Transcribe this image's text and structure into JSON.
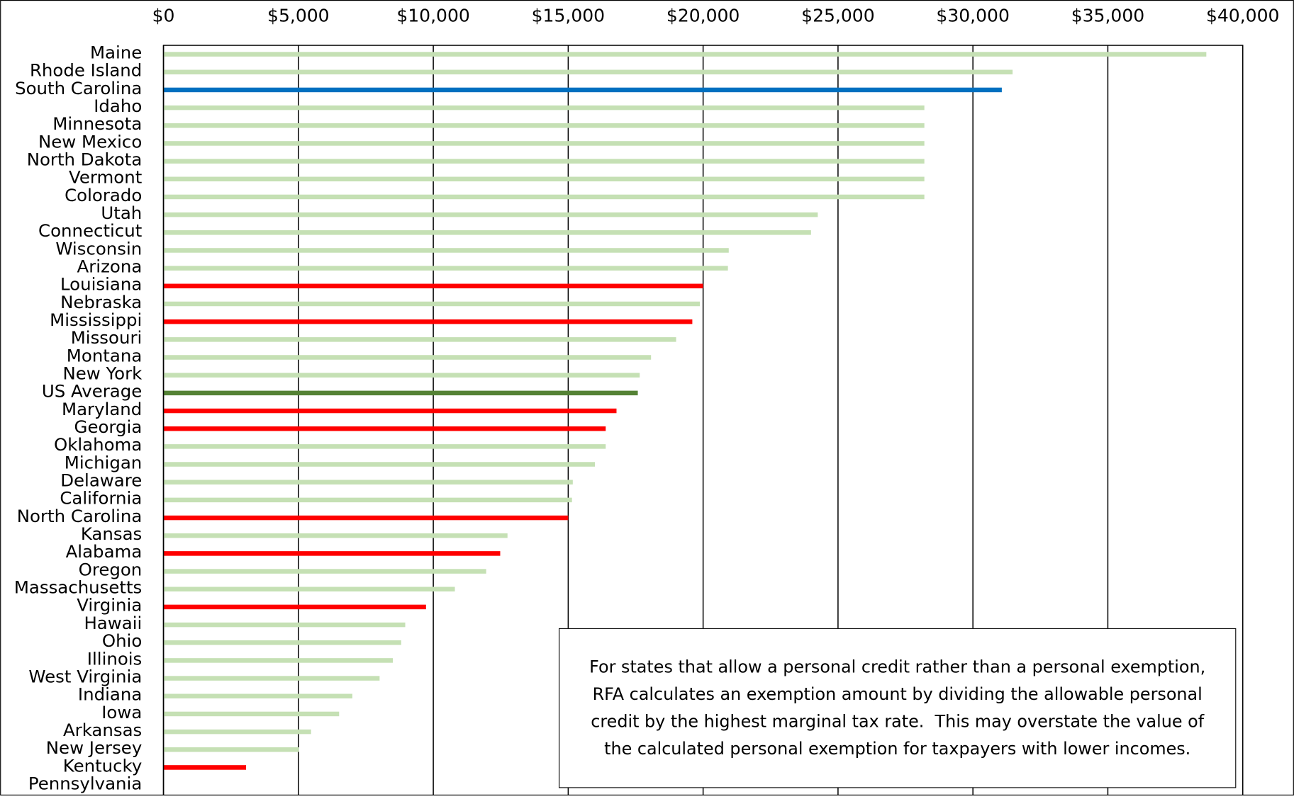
{
  "chart_data": {
    "type": "hbar",
    "categories": [
      "Maine",
      "Rhode Island",
      "South Carolina",
      "Idaho",
      "Minnesota",
      "New Mexico",
      "North Dakota",
      "Vermont",
      "Colorado",
      "Utah",
      "Connecticut",
      "Wisconsin",
      "Arizona",
      "Louisiana",
      "Nebraska",
      "Mississippi",
      "Missouri",
      "Montana",
      "New York",
      "US Average",
      "Maryland",
      "Georgia",
      "Oklahoma",
      "Michigan",
      "Delaware",
      "California",
      "North Carolina",
      "Kansas",
      "Alabama",
      "Oregon",
      "Massachusetts",
      "Virginia",
      "Hawaii",
      "Ohio",
      "Illinois",
      "West Virginia",
      "Indiana",
      "Iowa",
      "Arkansas",
      "New Jersey",
      "Kentucky",
      "Pennsylvania"
    ],
    "values": [
      38650,
      31470,
      31070,
      28200,
      28200,
      28200,
      28200,
      28200,
      28200,
      24250,
      24000,
      20950,
      20920,
      20000,
      19880,
      19600,
      19000,
      18070,
      17650,
      17580,
      16790,
      16390,
      16390,
      15990,
      15170,
      15140,
      15000,
      12750,
      12480,
      11960,
      10800,
      9730,
      8960,
      8810,
      8500,
      8010,
      7000,
      6510,
      5470,
      5020,
      3060,
      0
    ],
    "colors": [
      "#c5e0b4",
      "#c5e0b4",
      "#0070c0",
      "#c5e0b4",
      "#c5e0b4",
      "#c5e0b4",
      "#c5e0b4",
      "#c5e0b4",
      "#c5e0b4",
      "#c5e0b4",
      "#c5e0b4",
      "#c5e0b4",
      "#c5e0b4",
      "#ff0000",
      "#c5e0b4",
      "#ff0000",
      "#c5e0b4",
      "#c5e0b4",
      "#c5e0b4",
      "#548235",
      "#ff0000",
      "#ff0000",
      "#c5e0b4",
      "#c5e0b4",
      "#c5e0b4",
      "#c5e0b4",
      "#ff0000",
      "#c5e0b4",
      "#ff0000",
      "#c5e0b4",
      "#c5e0b4",
      "#ff0000",
      "#c5e0b4",
      "#c5e0b4",
      "#c5e0b4",
      "#c5e0b4",
      "#c5e0b4",
      "#c5e0b4",
      "#c5e0b4",
      "#c5e0b4",
      "#ff0000",
      "#c5e0b4"
    ],
    "xlim": [
      0,
      40000
    ],
    "xticks": [
      {
        "value": 0,
        "label": "$0"
      },
      {
        "value": 5000,
        "label": "$5,000"
      },
      {
        "value": 10000,
        "label": "$10,000"
      },
      {
        "value": 15000,
        "label": "$15,000"
      },
      {
        "value": 20000,
        "label": "$20,000"
      },
      {
        "value": 25000,
        "label": "$25,000"
      },
      {
        "value": 30000,
        "label": "$30,000"
      },
      {
        "value": 35000,
        "label": "$35,000"
      },
      {
        "value": 40000,
        "label": "$40,000"
      }
    ],
    "grid": true,
    "annotation": "For states that allow a personal credit rather than a personal exemption, RFA calculates an exemption amount by dividing the allowable personal credit by the highest marginal tax rate.  This may overstate the value of the calculated personal exemption for taxpayers with lower incomes."
  }
}
